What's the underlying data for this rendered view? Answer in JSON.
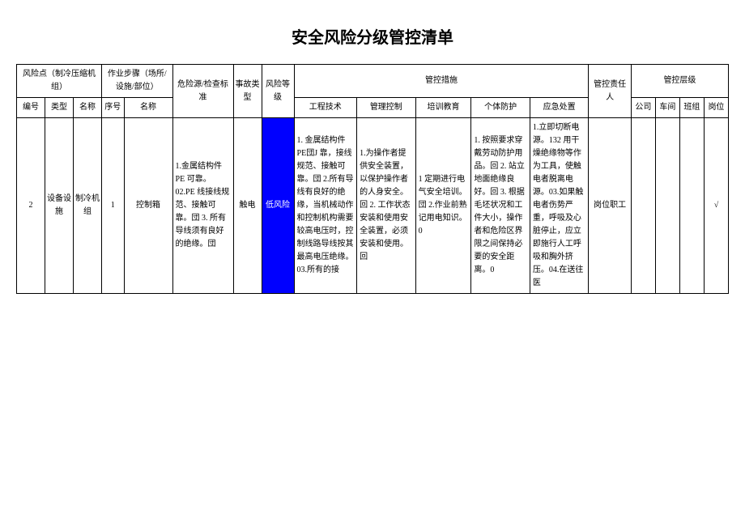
{
  "title": "安全风险分级管控清单",
  "headers": {
    "risk_point": "风险点（制冷压缩机组）",
    "operation": "作业步骤（场所/设施/部位）",
    "hazard": "危险源/检查标准",
    "accident_type": "事故类型",
    "risk_level": "风险等级",
    "control_measures": "管控措施",
    "responsible": "管控责任人",
    "control_level": "管控层级",
    "num": "编号",
    "type": "类型",
    "name": "名称",
    "seq": "序号",
    "op_name": "名称",
    "engineering": "工程技术",
    "management": "管理控制",
    "training": "培训教育",
    "ppe": "个体防护",
    "emergency": "应急处置",
    "company": "公司",
    "workshop": "车间",
    "team": "班组",
    "post": "岗位"
  },
  "row": {
    "num": "2",
    "type": "设备设施",
    "name": "制冷机组",
    "seq": "1",
    "op_name": "控制箱",
    "hazard": "1.金属结构件PE 可靠。02.PE 线接线规范、接触可靠。団 3. 所有导线须有良好的绝缘。団",
    "accident_type": "触电",
    "risk_level": "低风险",
    "engineering": "1. 金属结构件 PE団J 靠，接线规范、接触可靠。団 2.所有导线有良好的绝缘，当机械动作和控制机构需要较高电压时，控制线路导线按其最高电压绝缘。03.所有的接",
    "management": "1.为操作者提供安全装置，以保护操作者的人身安全。回 2. 工作状态安装和使用安全装置，必须安装和使用。回",
    "training": "1 定期进行电气安全培训。団 2.作业前熟记用电知识。0",
    "ppe": "1. 按照要求穿戴劳动防护用品。回 2. 站立地面绝缘良好。回 3. 根据毛坯状况和工件大小，操作者和危险区界限之间保持必要的安全距离。0",
    "emergency": "1.立即切断电源。132 用干燥绝缘物等作为工具，使触电者脱离电源。03.如果触电者伤势严重，呼吸及心脏停止，应立即施行人工呼吸和胸外挤压。04.在送往医",
    "responsible": "岗位职工",
    "company": "",
    "workshop": "",
    "team": "",
    "post": "√"
  },
  "colors": {
    "risk_bg": "#0000ff",
    "risk_fg": "#ffffff",
    "border": "#000000",
    "page_bg": "#ffffff"
  }
}
